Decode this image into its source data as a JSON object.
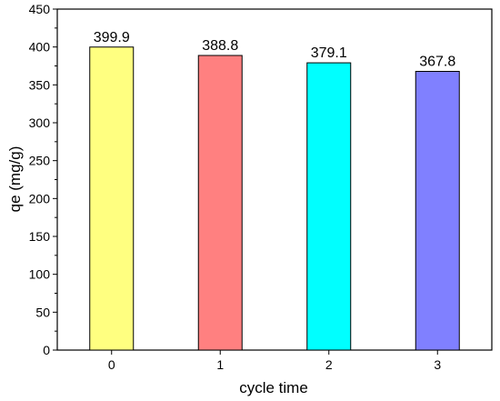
{
  "chart_data": {
    "type": "bar",
    "categories": [
      "0",
      "1",
      "2",
      "3"
    ],
    "values": [
      399.9,
      388.8,
      379.1,
      367.8
    ],
    "data_labels": [
      "399.9",
      "388.8",
      "379.1",
      "367.8"
    ],
    "bar_colors": [
      "#ffff80",
      "#ff8080",
      "#00ffff",
      "#8080ff"
    ],
    "title": "",
    "xlabel": "cycle time",
    "ylabel": "qe (mg/g)",
    "ylim": [
      0,
      450
    ],
    "yticks": [
      0,
      50,
      100,
      150,
      200,
      250,
      300,
      350,
      400,
      450
    ],
    "grid": false,
    "legend": "none"
  }
}
